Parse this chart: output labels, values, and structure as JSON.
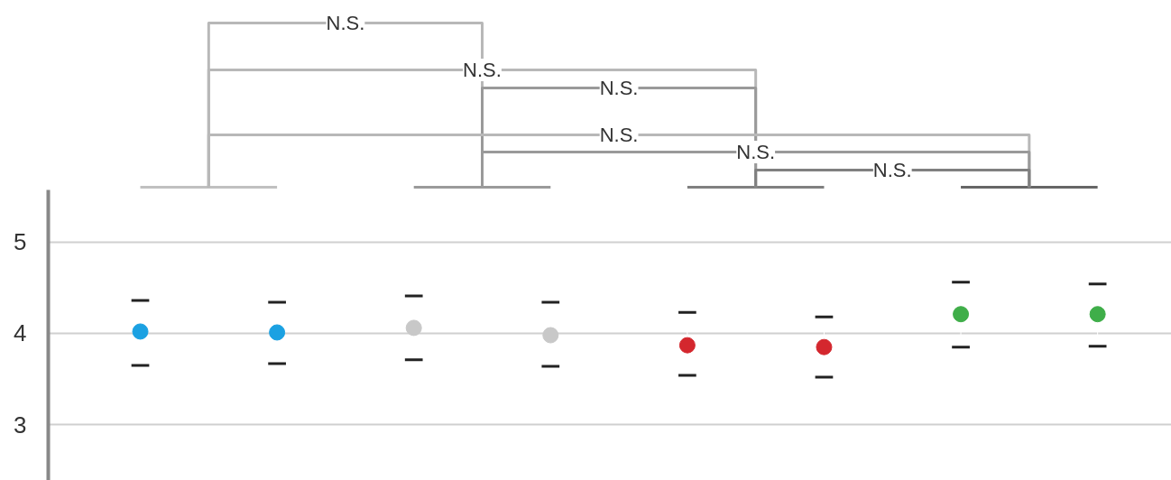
{
  "chart_data": {
    "type": "scatter",
    "categories": [
      null,
      null,
      null,
      null,
      null,
      null,
      null,
      null
    ],
    "series": [
      {
        "values": [
          4.02,
          4.01,
          4.06,
          3.98,
          3.87,
          3.85,
          4.21,
          4.21
        ],
        "colors": [
          "#1ba1e2",
          "#1ba1e2",
          "#c8c8c8",
          "#c8c8c8",
          "#d4272e",
          "#d4272e",
          "#3fae49",
          "#3fae49"
        ],
        "errors": [
          [
            3.65,
            4.36
          ],
          [
            3.67,
            4.34
          ],
          [
            3.71,
            4.41
          ],
          [
            3.64,
            4.34
          ],
          [
            3.54,
            4.23
          ],
          [
            3.52,
            4.18
          ],
          [
            3.85,
            4.56
          ],
          [
            3.86,
            4.54
          ]
        ]
      }
    ],
    "ylim": [
      2.39,
      5.57
    ],
    "yticks": [
      3,
      4,
      5
    ],
    "grid": "y",
    "marker": "circle",
    "tick_labels": "y",
    "annotations": [
      "N.S.",
      "N.S.",
      "N.S.",
      "N.S.",
      "N.S.",
      "N.S."
    ]
  }
}
